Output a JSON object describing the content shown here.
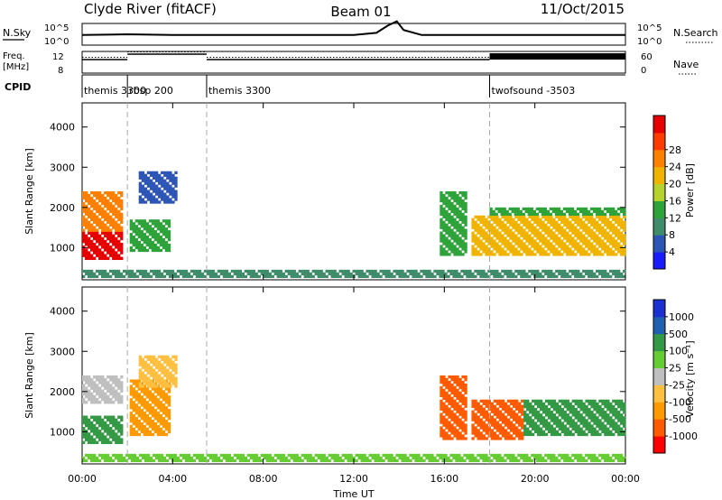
{
  "header": {
    "left_title": "Clyde River (fitACF)",
    "center_title": "Beam 01",
    "right_title": "11/Oct/2015"
  },
  "nsky_panel": {
    "left_label": "N.Sky",
    "left_ticks": [
      "10^5",
      "10^0"
    ],
    "right_ticks": [
      "10^5",
      "10^0"
    ],
    "right_label": "N.Search"
  },
  "freq_panel": {
    "left_label_1": "Freq.",
    "left_label_2": "[MHz]",
    "left_ticks": [
      "12",
      "8"
    ],
    "right_ticks": [
      "60",
      "0"
    ],
    "right_label": "Nave"
  },
  "cpid_panel": {
    "label": "CPID",
    "segments": [
      {
        "start_hour": 0.0,
        "label": "themis 3300"
      },
      {
        "start_hour": 2.0,
        "label": "rbsp 200"
      },
      {
        "start_hour": 5.5,
        "label": "themis 3300"
      },
      {
        "start_hour": 18.0,
        "label": "twofsound -3503"
      }
    ]
  },
  "colors": {
    "power": [
      "#1a1aff",
      "#2d55b5",
      "#3f8c6b",
      "#2ea33a",
      "#b5d22e",
      "#f0b400",
      "#ff7f00",
      "#ff3b00",
      "#e60000"
    ],
    "velocity": [
      "#ff0000",
      "#ff5a00",
      "#ff9900",
      "#ffbf40",
      "#bfbfbf",
      "#66cc33",
      "#339944",
      "#2060b0",
      "#1a30d0"
    ]
  },
  "chart_data": [
    {
      "type": "line",
      "name": "N.Sky / N.Search",
      "x": [
        0,
        2,
        4,
        8,
        12,
        13,
        13.5,
        13.9,
        14.2,
        15,
        18,
        21,
        24
      ],
      "y": [
        0.45,
        0.5,
        0.45,
        0.45,
        0.45,
        0.6,
        1.1,
        1.4,
        0.8,
        0.45,
        0.45,
        0.45,
        0.45
      ],
      "xlim": [
        0,
        24
      ],
      "ylabel_left": "N.Sky",
      "ylabel_right": "N.Search"
    },
    {
      "type": "line",
      "name": "Freq / Nave",
      "freq_segments": [
        {
          "from": 0.0,
          "to": 2.0,
          "value": 10.5
        },
        {
          "from": 2.0,
          "to": 5.5,
          "value": 11.5
        },
        {
          "from": 5.5,
          "to": 18.0,
          "value": 10.5
        },
        {
          "from": 18.0,
          "to": 24.0,
          "value": 11.0
        }
      ],
      "freq_ylim": [
        8,
        12
      ],
      "nave_ylim": [
        0,
        60
      ]
    },
    {
      "type": "heatmap",
      "title": "",
      "xlabel": "",
      "ylabel": "Slant Range [km]",
      "xlim": [
        0,
        24
      ],
      "ylim": [
        200,
        4600
      ],
      "yticks": [
        1000,
        2000,
        3000,
        4000
      ],
      "colorbar_label": "Power [dB]",
      "colorbar_ticks": [
        "4",
        "8",
        "12",
        "16",
        "20",
        "24",
        "28"
      ],
      "regions": [
        {
          "x0": 0.0,
          "x1": 1.8,
          "y0": 700,
          "y1": 1400,
          "level": 8
        },
        {
          "x0": 0.0,
          "x1": 1.8,
          "y0": 1400,
          "y1": 2400,
          "level": 6
        },
        {
          "x0": 2.1,
          "x1": 3.9,
          "y0": 900,
          "y1": 1700,
          "level": 3
        },
        {
          "x0": 2.5,
          "x1": 4.2,
          "y0": 2100,
          "y1": 2900,
          "level": 1
        },
        {
          "x0": 15.8,
          "x1": 17.0,
          "y0": 800,
          "y1": 2400,
          "level": 3
        },
        {
          "x0": 17.2,
          "x1": 24.0,
          "y0": 800,
          "y1": 1800,
          "level": 5
        },
        {
          "x0": 18.0,
          "x1": 24.0,
          "y0": 1800,
          "y1": 2000,
          "level": 3
        },
        {
          "x0": 0.0,
          "x1": 24.0,
          "y0": 250,
          "y1": 450,
          "level": 2
        }
      ],
      "xticks": [
        "00:00",
        "04:00",
        "08:00",
        "12:00",
        "16:00",
        "20:00",
        "00:00"
      ]
    },
    {
      "type": "heatmap",
      "title": "",
      "xlabel": "Time UT",
      "ylabel": "Slant Range [km]",
      "xlim": [
        0,
        24
      ],
      "ylim": [
        200,
        4600
      ],
      "yticks": [
        1000,
        2000,
        3000,
        4000
      ],
      "colorbar_label": "Velocity [m s⁻¹]",
      "colorbar_ticks": [
        "-1000",
        "-500",
        "-100",
        "-25",
        "25",
        "100",
        "500",
        "1000"
      ],
      "regions": [
        {
          "x0": 0.0,
          "x1": 1.8,
          "y0": 700,
          "y1": 1400,
          "level": 6
        },
        {
          "x0": 0.0,
          "x1": 1.8,
          "y0": 1700,
          "y1": 2400,
          "level": 4
        },
        {
          "x0": 2.1,
          "x1": 3.9,
          "y0": 900,
          "y1": 2300,
          "level": 2
        },
        {
          "x0": 2.5,
          "x1": 4.2,
          "y0": 2100,
          "y1": 2900,
          "level": 3
        },
        {
          "x0": 15.8,
          "x1": 17.0,
          "y0": 800,
          "y1": 2400,
          "level": 1
        },
        {
          "x0": 17.2,
          "x1": 19.5,
          "y0": 800,
          "y1": 1800,
          "level": 1
        },
        {
          "x0": 19.5,
          "x1": 24.0,
          "y0": 900,
          "y1": 1800,
          "level": 6
        },
        {
          "x0": 0.0,
          "x1": 24.0,
          "y0": 250,
          "y1": 450,
          "level": 5
        }
      ],
      "xticks": [
        "00:00",
        "04:00",
        "08:00",
        "12:00",
        "16:00",
        "20:00",
        "00:00"
      ]
    }
  ]
}
